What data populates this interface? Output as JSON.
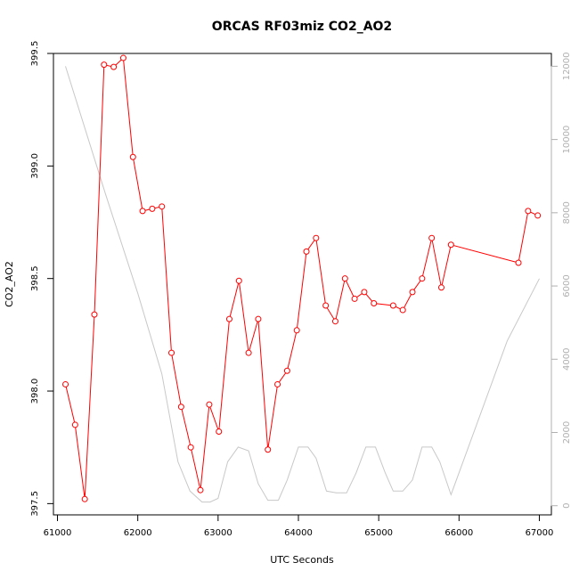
{
  "chart_data": {
    "type": "line",
    "title": "ORCAS RF03miz CO2_AO2",
    "xlabel": "UTC Seconds",
    "ylabel": "CO2_AO2",
    "xlim": [
      60950,
      67150
    ],
    "ylim": [
      397.45,
      399.5
    ],
    "y2lim": [
      -250,
      12350
    ],
    "x_ticks": [
      61000,
      62000,
      63000,
      64000,
      65000,
      66000,
      67000
    ],
    "y_ticks": [
      397.5,
      398.0,
      398.5,
      399.0,
      399.5
    ],
    "y_tick_labels": [
      "397.5",
      "398.0",
      "398.5",
      "399.0",
      "399.5"
    ],
    "y2_ticks": [
      0,
      2000,
      4000,
      6000,
      8000,
      10000,
      12000
    ],
    "grid": false,
    "colors": {
      "primary": "#ff0000",
      "secondary": "#c8c8c8",
      "right_axis": "#b0b0b0"
    },
    "series": [
      {
        "axis": "left",
        "style": "line+open-circles",
        "x": [
          61100,
          61220,
          61340,
          61460,
          61580,
          61700,
          61820,
          61940,
          62060,
          62180,
          62300,
          62420,
          62540,
          62660,
          62780,
          62890,
          63010,
          63140,
          63260,
          63380,
          63500,
          63620,
          63740,
          63860,
          63980,
          64100,
          64220,
          64340,
          64460,
          64580,
          64700,
          64820,
          64940,
          65180,
          65300,
          65420,
          65540,
          65660,
          65780,
          65900,
          66740,
          66860,
          66980
        ],
        "y": [
          398.03,
          397.85,
          397.52,
          398.34,
          399.45,
          399.44,
          399.48,
          399.04,
          398.8,
          398.81,
          398.82,
          398.17,
          397.93,
          397.75,
          397.56,
          397.94,
          397.82,
          398.32,
          398.49,
          398.17,
          398.32,
          397.74,
          398.03,
          398.09,
          398.27,
          398.62,
          398.68,
          398.38,
          398.31,
          398.5,
          398.41,
          398.44,
          398.39,
          398.38,
          398.36,
          398.44,
          398.5,
          398.68,
          398.46,
          398.65,
          398.57,
          398.8,
          398.78
        ]
      },
      {
        "axis": "right",
        "style": "line",
        "x": [
          61100,
          61600,
          62000,
          62300,
          62500,
          62650,
          62800,
          62900,
          63000,
          63120,
          63250,
          63380,
          63500,
          63620,
          63750,
          63860,
          64000,
          64120,
          64220,
          64350,
          64470,
          64600,
          64720,
          64840,
          64960,
          65080,
          65180,
          65300,
          65420,
          65540,
          65660,
          65760,
          65900,
          66600,
          67000
        ],
        "y": [
          12000,
          8500,
          5800,
          3600,
          1200,
          400,
          100,
          100,
          200,
          1200,
          1600,
          1500,
          600,
          150,
          150,
          700,
          1600,
          1600,
          1300,
          400,
          350,
          350,
          900,
          1600,
          1600,
          900,
          400,
          400,
          700,
          1600,
          1600,
          1200,
          300,
          4500,
          6200
        ]
      }
    ]
  }
}
